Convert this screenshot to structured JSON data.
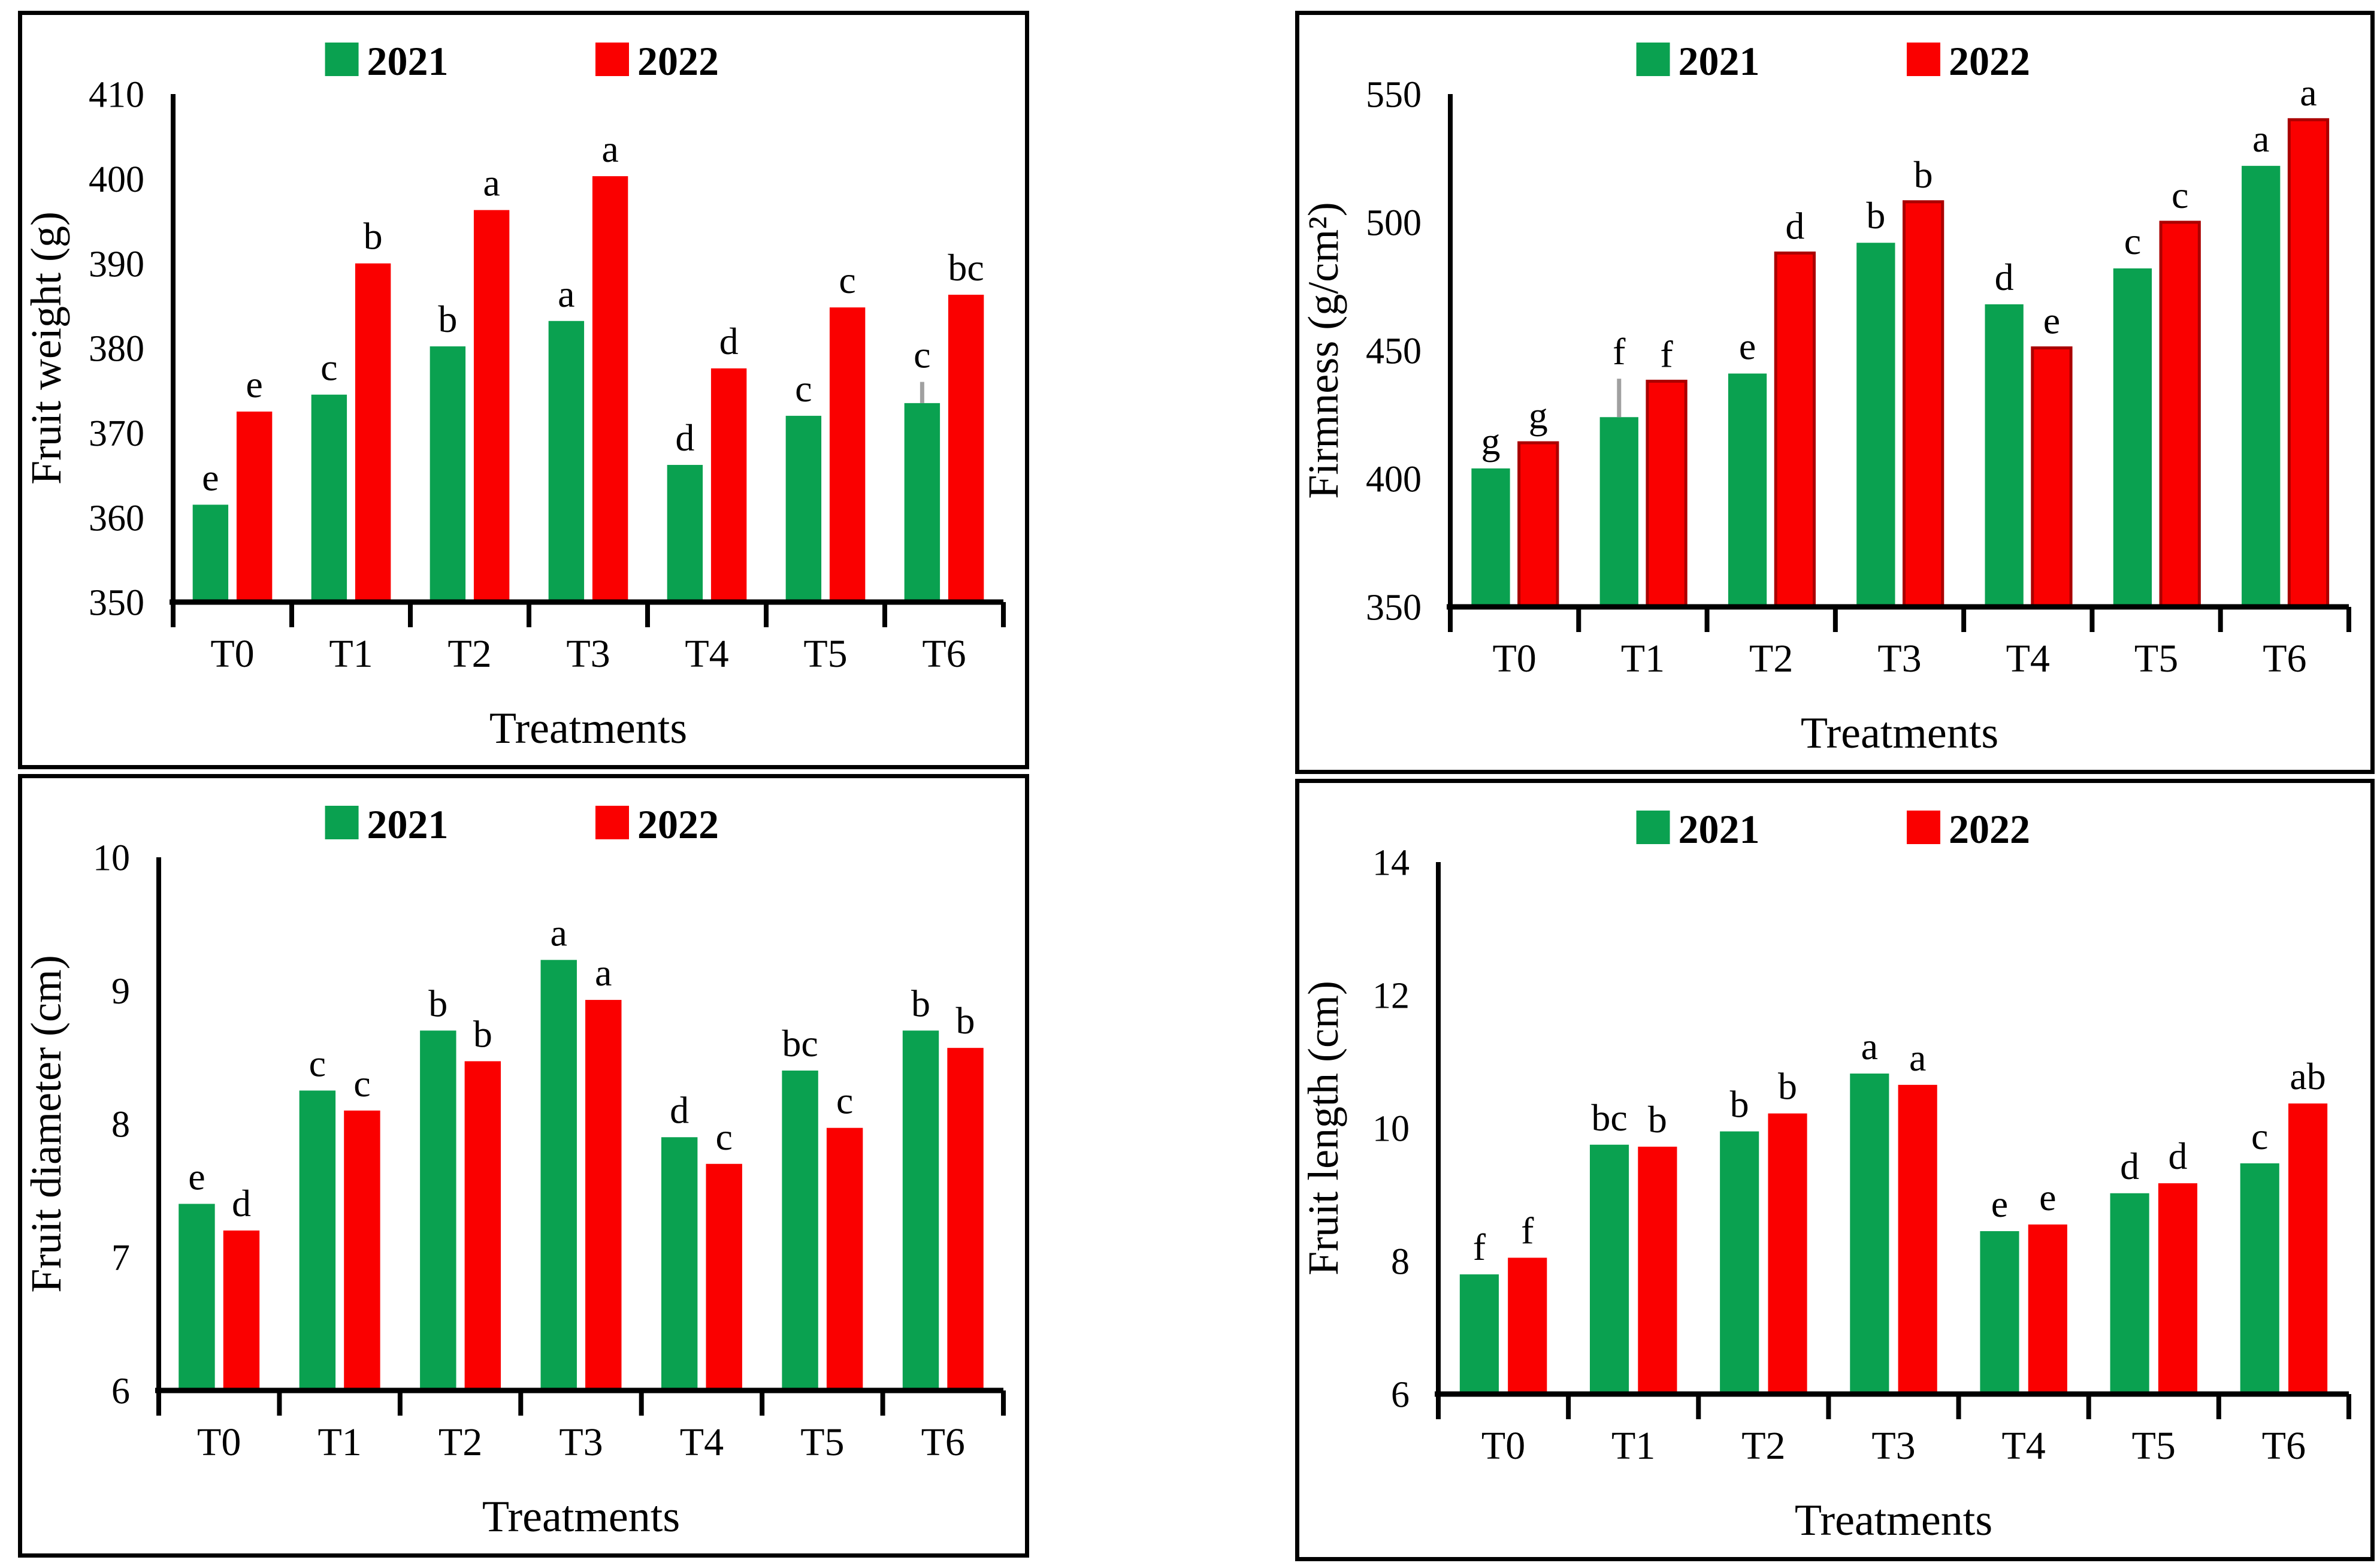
{
  "figure": {
    "background": "#FFFFFF",
    "panel_border_color": "#000000",
    "axis_color": "#000000",
    "error_bar_color": "#A0A0A0",
    "series_colors": {
      "y2021": "#0AA150",
      "y2022": "#FA0000"
    },
    "red_edge_color": "#AA0000"
  },
  "chart_data": [
    {
      "id": "fruit-weight",
      "type": "bar",
      "title": "",
      "xlabel": "Treatments",
      "ylabel": "Fruit weight (g)",
      "ylim": [
        350,
        410
      ],
      "yticks": [
        350,
        360,
        370,
        380,
        390,
        400,
        410
      ],
      "categories": [
        "T0",
        "T1",
        "T2",
        "T3",
        "T4",
        "T5",
        "T6"
      ],
      "grid": false,
      "legend_position": "top",
      "series": [
        {
          "name": "2021",
          "color": "#0AA150",
          "values": [
            361.5,
            374.5,
            380.2,
            383.2,
            366.2,
            372.0,
            373.5
          ],
          "letters": [
            "e",
            "c",
            "b",
            "a",
            "d",
            "c",
            "c"
          ],
          "errors": [
            0,
            0,
            0,
            0,
            0,
            0,
            2.5
          ]
        },
        {
          "name": "2022",
          "color": "#FA0000",
          "values": [
            372.5,
            390.0,
            396.3,
            400.3,
            377.6,
            384.8,
            386.3
          ],
          "letters": [
            "e",
            "b",
            "a",
            "a",
            "d",
            "c",
            "bc"
          ],
          "errors": [
            0,
            0,
            0,
            0,
            0,
            0,
            0
          ]
        }
      ]
    },
    {
      "id": "firmness",
      "type": "bar",
      "title": "",
      "xlabel": "Treatments",
      "ylabel": "Firmness (g/cm²)",
      "ylim": [
        350,
        550
      ],
      "yticks": [
        350,
        400,
        450,
        500,
        550
      ],
      "categories": [
        "T0",
        "T1",
        "T2",
        "T3",
        "T4",
        "T5",
        "T6"
      ],
      "grid": false,
      "legend_position": "top",
      "red_edge": true,
      "series": [
        {
          "name": "2021",
          "color": "#0AA150",
          "values": [
            404,
            424,
            441,
            492,
            468,
            482,
            522
          ],
          "letters": [
            "g",
            "f",
            "e",
            "b",
            "d",
            "c",
            "a"
          ],
          "errors": [
            0,
            15,
            0,
            0,
            0,
            0,
            0
          ]
        },
        {
          "name": "2022",
          "color": "#FA0000",
          "values": [
            414,
            438,
            488,
            508,
            451,
            500,
            540
          ],
          "letters": [
            "g",
            "f",
            "d",
            "b",
            "e",
            "c",
            "a"
          ],
          "errors": [
            0,
            0,
            0,
            0,
            0,
            0,
            0
          ]
        }
      ]
    },
    {
      "id": "fruit-diameter",
      "type": "bar",
      "title": "",
      "xlabel": "Treatments",
      "ylabel": "Fruit diameter (cm)",
      "ylim": [
        6,
        10
      ],
      "yticks": [
        6,
        7,
        8,
        9,
        10
      ],
      "categories": [
        "T0",
        "T1",
        "T2",
        "T3",
        "T4",
        "T5",
        "T6"
      ],
      "grid": false,
      "legend_position": "top",
      "series": [
        {
          "name": "2021",
          "color": "#0AA150",
          "values": [
            7.4,
            8.25,
            8.7,
            9.23,
            7.9,
            8.4,
            8.7
          ],
          "letters": [
            "e",
            "c",
            "b",
            "a",
            "d",
            "bc",
            "b"
          ],
          "errors": [
            0,
            0,
            0,
            0,
            0,
            0,
            0
          ]
        },
        {
          "name": "2022",
          "color": "#FA0000",
          "values": [
            7.2,
            8.1,
            8.47,
            8.93,
            7.7,
            7.97,
            8.57
          ],
          "letters": [
            "d",
            "c",
            "b",
            "a",
            "c",
            "c",
            "b"
          ],
          "errors": [
            0,
            0,
            0,
            0,
            0,
            0,
            0
          ]
        }
      ]
    },
    {
      "id": "fruit-length",
      "type": "bar",
      "title": "",
      "xlabel": "Treatments",
      "ylabel": "Fruit length (cm)",
      "ylim": [
        6,
        14
      ],
      "yticks": [
        6,
        8,
        10,
        12,
        14
      ],
      "categories": [
        "T0",
        "T1",
        "T2",
        "T3",
        "T4",
        "T5",
        "T6"
      ],
      "grid": false,
      "legend_position": "top",
      "series": [
        {
          "name": "2021",
          "color": "#0AA150",
          "values": [
            7.8,
            9.75,
            9.95,
            10.82,
            8.45,
            9.02,
            9.47
          ],
          "letters": [
            "f",
            "bc",
            "b",
            "a",
            "e",
            "d",
            "c"
          ],
          "errors": [
            0,
            0,
            0,
            0,
            0,
            0,
            0
          ]
        },
        {
          "name": "2022",
          "color": "#FA0000",
          "values": [
            8.05,
            9.72,
            10.22,
            10.65,
            8.55,
            9.17,
            10.37
          ],
          "letters": [
            "f",
            "b",
            "b",
            "a",
            "e",
            "d",
            "ab"
          ],
          "errors": [
            0,
            0,
            0,
            0,
            0,
            0,
            0
          ]
        }
      ]
    }
  ]
}
